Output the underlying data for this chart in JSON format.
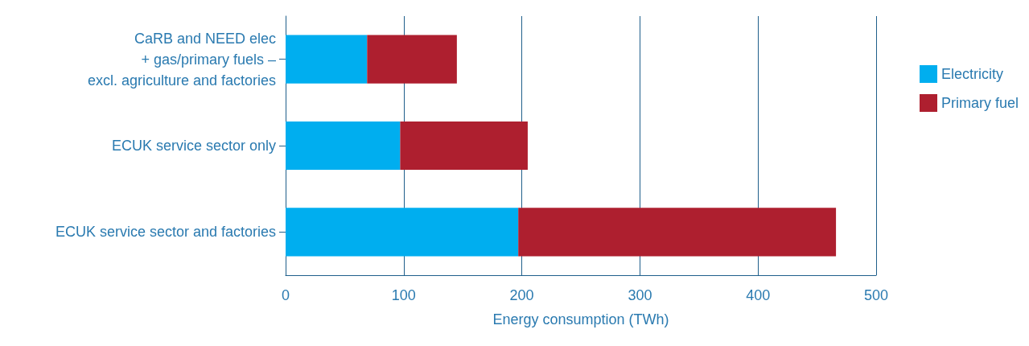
{
  "chart_data": {
    "type": "bar",
    "orientation": "horizontal",
    "stacked": true,
    "categories": [
      "CaRB and NEED elec\n+ gas/primary fuels –\nexcl. agriculture and factories",
      "ECUK service sector only",
      "ECUK service sector and factories"
    ],
    "series": [
      {
        "name": "Electricity",
        "color": "#00aeef",
        "values": [
          69,
          97,
          197
        ]
      },
      {
        "name": "Primary fuel",
        "color": "#ae1f2f",
        "values": [
          76,
          108,
          269
        ]
      }
    ],
    "xlabel": "Energy consumption (TWh)",
    "xlim": [
      0,
      500
    ],
    "xticks": [
      0,
      100,
      200,
      300,
      400,
      500
    ],
    "grid": "x",
    "legend": "right"
  }
}
